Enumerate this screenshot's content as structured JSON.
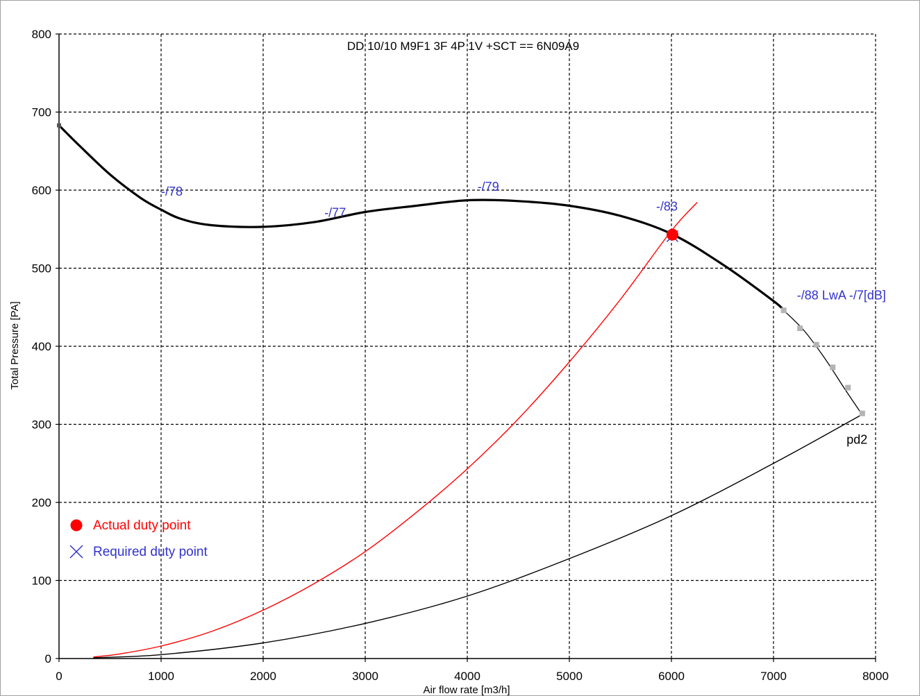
{
  "chart_data": {
    "type": "line",
    "title": "DD 10/10 M9F1 3F 4P 1V +SCT == 6N09A9",
    "xlabel": "Air flow rate [m3/h]",
    "ylabel": "Total Pressure [PA]",
    "xlim": [
      0,
      8000
    ],
    "ylim": [
      0,
      800
    ],
    "x_ticks": [
      0,
      1000,
      2000,
      3000,
      4000,
      5000,
      6000,
      7000,
      8000
    ],
    "y_ticks": [
      0,
      100,
      200,
      300,
      400,
      500,
      600,
      700,
      800
    ],
    "grid": true,
    "colors": {
      "fan_curve": "#000000",
      "system_curve": "#ff0000",
      "annotation": "#3333cc",
      "efficiency_marks": "#b4b4b4"
    },
    "series": [
      {
        "key": "fan_curve_thick",
        "points": [
          [
            0,
            683
          ],
          [
            200,
            657
          ],
          [
            500,
            620
          ],
          [
            800,
            590
          ],
          [
            1000,
            575
          ],
          [
            1200,
            563
          ],
          [
            1500,
            555
          ],
          [
            2000,
            553
          ],
          [
            2500,
            559
          ],
          [
            3000,
            572
          ],
          [
            3500,
            580
          ],
          [
            4000,
            587
          ],
          [
            4500,
            586
          ],
          [
            5000,
            580
          ],
          [
            5500,
            567
          ],
          [
            6000,
            544
          ],
          [
            6500,
            505
          ],
          [
            7000,
            458
          ],
          [
            7100,
            446
          ]
        ]
      },
      {
        "key": "fan_curve_thin",
        "points": [
          [
            7100,
            446
          ],
          [
            7300,
            420
          ],
          [
            7500,
            385
          ],
          [
            7700,
            345
          ],
          [
            7860,
            314
          ]
        ]
      },
      {
        "key": "system_curve",
        "points": [
          [
            340,
            2
          ],
          [
            600,
            6
          ],
          [
            1000,
            16
          ],
          [
            1500,
            35
          ],
          [
            2000,
            62
          ],
          [
            2500,
            96
          ],
          [
            3000,
            137
          ],
          [
            3500,
            187
          ],
          [
            4000,
            243
          ],
          [
            4500,
            307
          ],
          [
            5000,
            380
          ],
          [
            5500,
            460
          ],
          [
            6000,
            548
          ],
          [
            6250,
            584
          ]
        ]
      },
      {
        "key": "pd2_curve",
        "points": [
          [
            340,
            1
          ],
          [
            1000,
            5
          ],
          [
            2000,
            20
          ],
          [
            3000,
            45
          ],
          [
            4000,
            80
          ],
          [
            5000,
            128
          ],
          [
            6000,
            183
          ],
          [
            7000,
            250
          ],
          [
            7860,
            312
          ]
        ]
      }
    ],
    "efficiency_points": [
      [
        7100,
        446
      ],
      [
        7260,
        423
      ],
      [
        7420,
        402
      ],
      [
        7580,
        373
      ],
      [
        7730,
        347
      ],
      [
        7870,
        314
      ]
    ],
    "annotations": [
      {
        "text": "-/78",
        "x": 1000,
        "y": 593
      },
      {
        "text": "-/77",
        "x": 2600,
        "y": 566
      },
      {
        "text": "-/79",
        "x": 4100,
        "y": 599
      },
      {
        "text": "-/83",
        "x": 5850,
        "y": 574
      },
      {
        "text": "-/88 LwA -/7[dB]",
        "x": 7230,
        "y": 460
      }
    ],
    "pd2_label": {
      "text": "pd2",
      "x": 7920,
      "y": 275
    },
    "actual_duty_point": {
      "x": 6010,
      "y": 543
    },
    "required_duty_point": {
      "x": 6010,
      "y": 541
    },
    "legend": [
      {
        "label": "Actual duty point",
        "marker": "filled-circle",
        "color": "#ff0000"
      },
      {
        "label": "Required duty point",
        "marker": "cross",
        "color": "#3333cc"
      }
    ],
    "legend_position": "bottom-left"
  }
}
